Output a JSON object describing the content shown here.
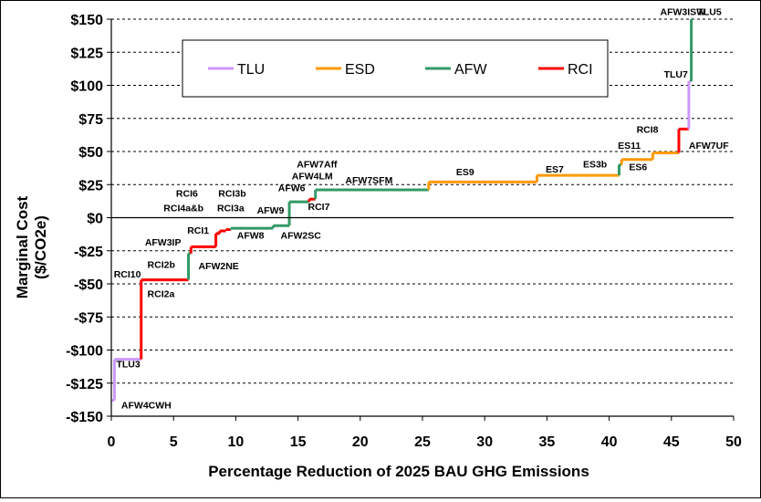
{
  "chart_data": {
    "type": "line",
    "title": "",
    "xlabel": "Percentage Reduction of 2025 BAU GHG Emissions",
    "ylabel_lines": [
      "Marginal Cost",
      "($/CO2e)"
    ],
    "xlim": [
      0,
      50
    ],
    "ylim": [
      -150,
      150
    ],
    "x_ticks": [
      0,
      5,
      10,
      15,
      20,
      25,
      30,
      35,
      40,
      45,
      50
    ],
    "x_tick_labels": [
      "0",
      "5",
      "10",
      "15",
      "20",
      "25",
      "30",
      "35",
      "40",
      "45",
      "50"
    ],
    "y_ticks": [
      150,
      125,
      100,
      75,
      50,
      25,
      0,
      -25,
      -50,
      -75,
      -100,
      -125,
      -150
    ],
    "y_tick_labels": [
      "$150",
      "$125",
      "$100",
      "$75",
      "$50",
      "$25",
      "$0",
      "-$25",
      "-$50",
      "-$75",
      "-$100",
      "-$125",
      "-$150"
    ],
    "grid": "horizontal dashed",
    "legend_position": "top-left",
    "series": [
      {
        "name": "TLU",
        "color": "#cc99ff"
      },
      {
        "name": "ESD",
        "color": "#ff9900"
      },
      {
        "name": "AFW",
        "color": "#339966"
      },
      {
        "name": "RCI",
        "color": "#ff0000"
      }
    ],
    "steps": [
      {
        "series": "TLU",
        "x0": 0.0,
        "x1": 0.25,
        "y": -138
      },
      {
        "series": "TLU",
        "x0": 0.25,
        "x1": 2.4,
        "y": -107
      },
      {
        "series": "RCI",
        "x0": 2.4,
        "x1": 6.2,
        "y": -47
      },
      {
        "series": "AFW",
        "x0": 6.2,
        "x1": 6.4,
        "y": -27
      },
      {
        "series": "RCI",
        "x0": 6.4,
        "x1": 8.4,
        "y": -22
      },
      {
        "series": "RCI",
        "x0": 8.4,
        "x1": 8.7,
        "y": -12
      },
      {
        "series": "RCI",
        "x0": 8.7,
        "x1": 9.2,
        "y": -10
      },
      {
        "series": "RCI",
        "x0": 9.2,
        "x1": 9.6,
        "y": -9
      },
      {
        "series": "AFW",
        "x0": 9.6,
        "x1": 13.0,
        "y": -8
      },
      {
        "series": "AFW",
        "x0": 13.0,
        "x1": 14.3,
        "y": -6
      },
      {
        "series": "AFW",
        "x0": 14.3,
        "x1": 15.9,
        "y": 12
      },
      {
        "series": "RCI",
        "x0": 15.9,
        "x1": 16.4,
        "y": 14
      },
      {
        "series": "AFW",
        "x0": 16.4,
        "x1": 25.5,
        "y": 21
      },
      {
        "series": "ESD",
        "x0": 25.5,
        "x1": 34.2,
        "y": 27
      },
      {
        "series": "ESD",
        "x0": 34.2,
        "x1": 40.8,
        "y": 32
      },
      {
        "series": "AFW",
        "x0": 40.8,
        "x1": 41.0,
        "y": 40
      },
      {
        "series": "ESD",
        "x0": 41.0,
        "x1": 43.5,
        "y": 44
      },
      {
        "series": "ESD",
        "x0": 43.5,
        "x1": 45.6,
        "y": 49
      },
      {
        "series": "RCI",
        "x0": 45.6,
        "x1": 46.4,
        "y": 67
      },
      {
        "series": "TLU",
        "x0": 46.4,
        "x1": 46.6,
        "y": 103
      },
      {
        "series": "AFW",
        "x0": 46.6,
        "x1": 46.7,
        "y": 150
      }
    ],
    "annotations": [
      {
        "text": "AFW3ISW",
        "x": 44.1,
        "y": 153
      },
      {
        "text": "TLU5",
        "x": 47.1,
        "y": 153
      },
      {
        "text": "TLU7",
        "x": 44.4,
        "y": 106
      },
      {
        "text": "RCI8",
        "x": 42.2,
        "y": 64
      },
      {
        "text": "AFW7UF",
        "x": 46.4,
        "y": 52
      },
      {
        "text": "ES11",
        "x": 40.7,
        "y": 52
      },
      {
        "text": "ES6",
        "x": 41.6,
        "y": 36
      },
      {
        "text": "ES3b",
        "x": 37.9,
        "y": 38
      },
      {
        "text": "ES7",
        "x": 34.9,
        "y": 34
      },
      {
        "text": "ES9",
        "x": 27.7,
        "y": 32
      },
      {
        "text": "AFW7Aff",
        "x": 14.9,
        "y": 38
      },
      {
        "text": "AFW4LM",
        "x": 14.5,
        "y": 29
      },
      {
        "text": "AFW7SFM",
        "x": 18.8,
        "y": 26
      },
      {
        "text": "AFW6",
        "x": 13.4,
        "y": 20
      },
      {
        "text": "RCI6",
        "x": 5.2,
        "y": 16
      },
      {
        "text": "RCI3b",
        "x": 8.6,
        "y": 16
      },
      {
        "text": "RCI4a&b",
        "x": 4.2,
        "y": 5
      },
      {
        "text": "RCI3a",
        "x": 8.5,
        "y": 5
      },
      {
        "text": "AFW9",
        "x": 11.7,
        "y": 3
      },
      {
        "text": "RCI7",
        "x": 15.8,
        "y": 6
      },
      {
        "text": "RCI1",
        "x": 6.1,
        "y": -12
      },
      {
        "text": "AFW8",
        "x": 10.1,
        "y": -16
      },
      {
        "text": "AFW2SC",
        "x": 13.6,
        "y": -16
      },
      {
        "text": "AFW3IP",
        "x": 2.7,
        "y": -21
      },
      {
        "text": "RCI2b",
        "x": 2.9,
        "y": -38
      },
      {
        "text": "AFW2NE",
        "x": 7.0,
        "y": -39
      },
      {
        "text": "RCI10",
        "x": 0.2,
        "y": -45
      },
      {
        "text": "RCI2a",
        "x": 2.9,
        "y": -60
      },
      {
        "text": "TLU3",
        "x": 0.4,
        "y": -113
      },
      {
        "text": "AFW4CWH",
        "x": 0.8,
        "y": -144
      }
    ]
  }
}
